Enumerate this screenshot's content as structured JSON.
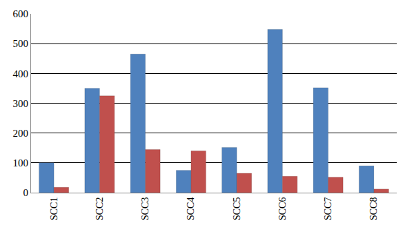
{
  "chart_data": {
    "type": "bar",
    "categories": [
      "SCC1",
      "SCC2",
      "SCC3",
      "SCC4",
      "SCC5",
      "SCC6",
      "SCC7",
      "SCC8"
    ],
    "series": [
      {
        "color": "#4f81bd",
        "values": [
          100,
          350,
          465,
          75,
          152,
          548,
          352,
          90
        ]
      },
      {
        "color": "#c0504d",
        "values": [
          18,
          325,
          145,
          140,
          65,
          55,
          52,
          12
        ]
      }
    ],
    "ylim": [
      0,
      600
    ],
    "yticks": [
      0,
      100,
      200,
      300,
      400,
      500,
      600
    ],
    "grid": true
  }
}
